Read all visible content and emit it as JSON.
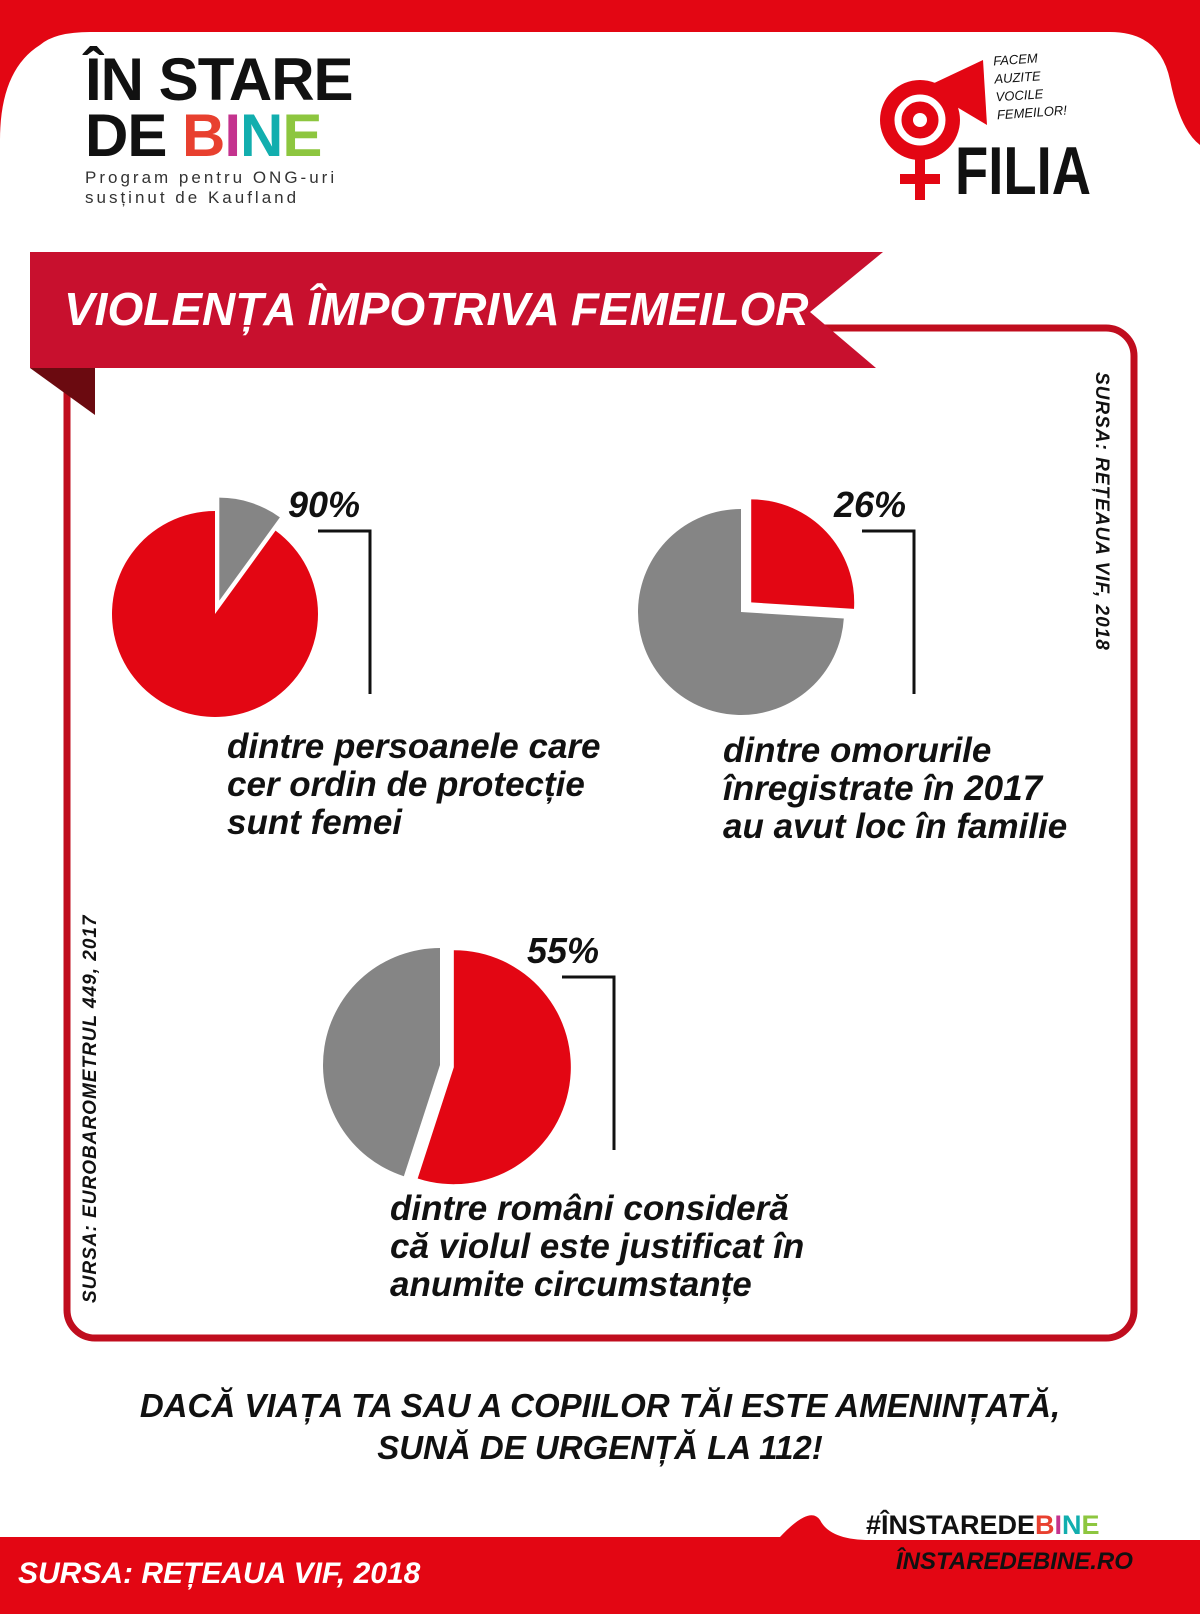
{
  "logo_left": {
    "line1": "ÎN STARE",
    "line2_prefix": "DE ",
    "line2_colored": [
      "B",
      "I",
      "N",
      "E"
    ],
    "colors": [
      "#e8402f",
      "#c4338e",
      "#12aeae",
      "#8dc63f"
    ],
    "sub1": "Program pentru ONG-uri",
    "sub2": "susținut de Kaufland"
  },
  "logo_right": {
    "tagline": [
      "FACEM",
      "AUZITE",
      "VOCILE",
      "FEMEILOR!"
    ],
    "name": "FILIA"
  },
  "title": "VIOLENȚA ÎMPOTRIVA FEMEILOR",
  "source_right": "SURSA: REȚEAUA VIF, 2018",
  "source_left": "SURSA: EUROBAROMETRUL 449, 2017",
  "colors": {
    "red": "#e30613",
    "gray": "#858585",
    "dark_red": "#c00d1e"
  },
  "chart_data": [
    {
      "type": "pie",
      "values": [
        90,
        10
      ],
      "highlight": "90%",
      "label": "90%",
      "description": [
        "dintre persoanele care",
        "cer ordin de protecție",
        "sunt femei"
      ]
    },
    {
      "type": "pie",
      "values": [
        26,
        74
      ],
      "label": "26%",
      "description": [
        "dintre omorurile",
        "înregistrate în 2017",
        "au avut loc în familie"
      ]
    },
    {
      "type": "pie",
      "values": [
        55,
        45
      ],
      "label": "55%",
      "description": [
        "dintre români consideră",
        "că violul este justificat în",
        "anumite circumstanțe"
      ]
    }
  ],
  "call_to_action": [
    "DACĂ VIAȚA TA SAU A COPIILOR TĂI ESTE AMENINȚATĂ,",
    "SUNĂ DE URGENȚĂ LA 112!"
  ],
  "footer": {
    "source": "SURSA: REȚEAUA VIF, 2018",
    "hashtag_prefix": "#ÎNSTAREDE",
    "hashtag_colored": [
      "B",
      "I",
      "N",
      "E"
    ],
    "website": "ÎNSTAREDEBINE.RO"
  }
}
